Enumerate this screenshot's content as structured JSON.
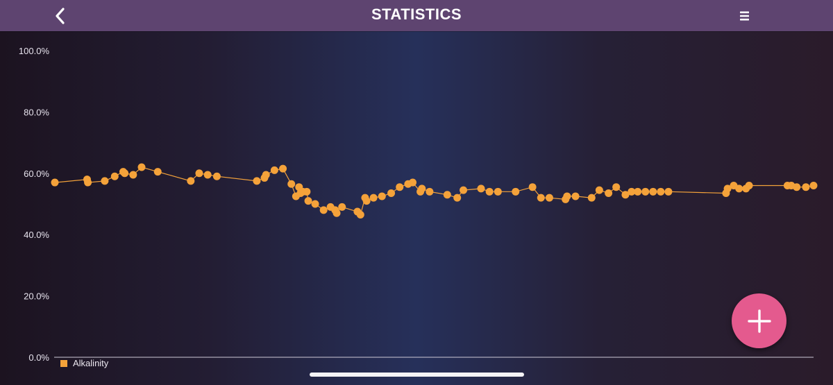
{
  "header": {
    "title": "STATISTICS",
    "back_icon": "chevron-left-icon",
    "menu_icon": "menu-icon",
    "background": "#5e4470"
  },
  "fab": {
    "icon": "plus-icon",
    "color": "#e45a8e"
  },
  "chart_data": {
    "type": "line",
    "title": "",
    "xlabel": "",
    "ylabel": "",
    "ylim": [
      0,
      100
    ],
    "y_ticks": [
      "0.0%",
      "20.0%",
      "40.0%",
      "60.0%",
      "80.0%",
      "100.0%"
    ],
    "grid": false,
    "legend_position": "bottom-left",
    "series": [
      {
        "name": "Alkalinity",
        "color": "#f4a23a",
        "x": [
          0,
          4.2,
          4.3,
          6.5,
          7.8,
          8.9,
          9.1,
          10.2,
          11.3,
          13.4,
          17.7,
          18.8,
          19.9,
          21.1,
          26.3,
          27.3,
          27.5,
          28.6,
          29.7,
          30.8,
          31.4,
          31.8,
          32.0,
          32.3,
          32.8,
          33.0,
          33.9,
          35.0,
          35.9,
          36.5,
          36.7,
          37.4,
          39.4,
          39.8,
          40.4,
          40.6,
          41.5,
          42.6,
          43.8,
          44.9,
          46.0,
          46.6,
          47.6,
          47.8,
          48.8,
          51.1,
          52.4,
          53.2,
          55.5,
          56.6,
          57.7,
          60.0,
          62.2,
          63.3,
          64.4,
          66.5,
          66.7,
          67.8,
          69.9,
          70.9,
          72.1,
          73.1,
          74.3,
          75.1,
          75.9,
          76.9,
          77.9,
          78.9,
          79.9,
          87.4,
          87.6,
          88.4,
          89.1,
          90.0,
          90.4,
          95.4,
          95.9,
          96.6,
          97.8,
          98.8
        ],
        "values": [
          57,
          58,
          57,
          57.5,
          59,
          60.5,
          60,
          59.5,
          62,
          60.5,
          57.5,
          60,
          59.5,
          59,
          57.5,
          58.5,
          59.5,
          61,
          61.5,
          56.5,
          52.5,
          55.5,
          53.5,
          54,
          54,
          51,
          50,
          48,
          49,
          48,
          47,
          49,
          47.5,
          46.5,
          52,
          51,
          52,
          52.5,
          53.5,
          55.5,
          56.5,
          57,
          54,
          55,
          54,
          53,
          52,
          54.5,
          55,
          54,
          54,
          54,
          55.5,
          52,
          52,
          51.5,
          52.5,
          52.5,
          52,
          54.5,
          53.5,
          55.5,
          53,
          54,
          54,
          54,
          54,
          54,
          54,
          53.5,
          55,
          56,
          55,
          55,
          56,
          56,
          56,
          55.5,
          55.5,
          56
        ]
      }
    ]
  }
}
